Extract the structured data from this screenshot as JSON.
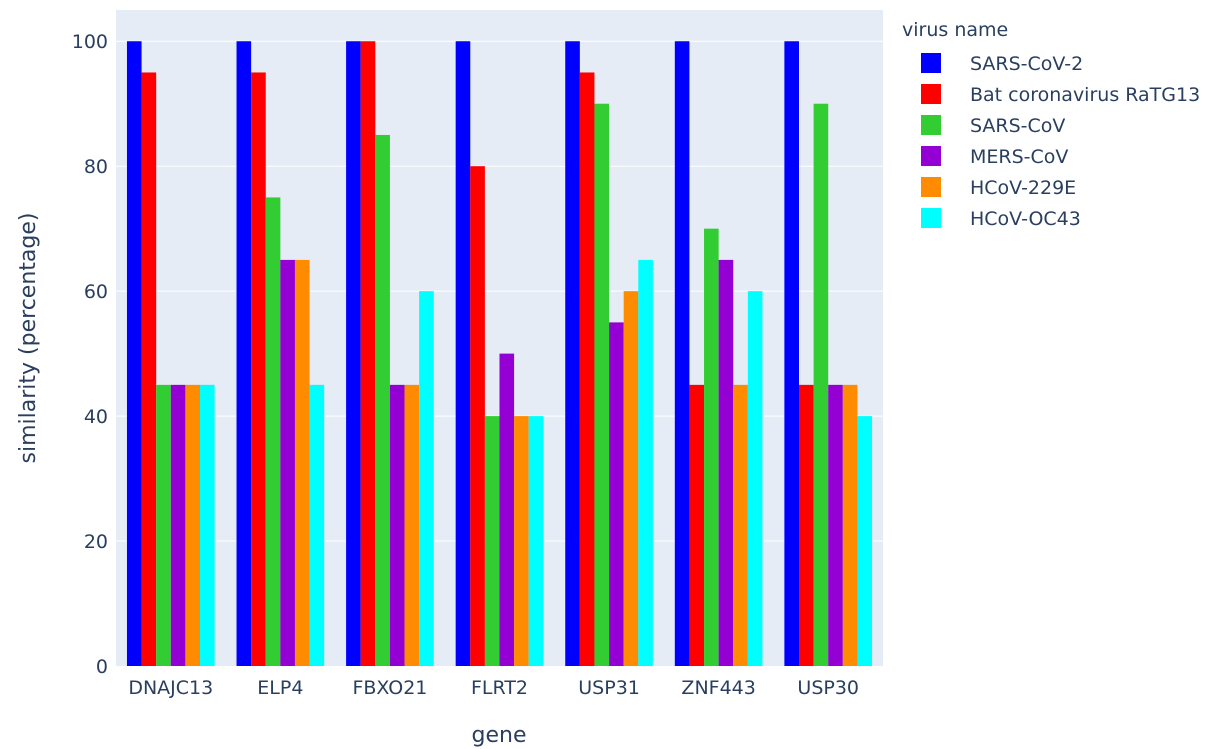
{
  "chart_data": {
    "type": "bar",
    "xlabel": "gene",
    "ylabel": "similarity (percentage)",
    "ylim": [
      0,
      105
    ],
    "yticks": [
      0,
      20,
      40,
      60,
      80,
      100
    ],
    "grid": true,
    "plot_background": "#e5ecf6",
    "legend_title": "virus name",
    "legend_position": "right",
    "categories": [
      "DNAJC13",
      "ELP4",
      "FBXO21",
      "FLRT2",
      "USP31",
      "ZNF443",
      "USP30"
    ],
    "series": [
      {
        "name": "SARS-CoV-2",
        "color": "#0000ff",
        "values": [
          100,
          100,
          100,
          100,
          100,
          100,
          100
        ]
      },
      {
        "name": "Bat coronavirus RaTG13",
        "color": "#ff0000",
        "values": [
          95,
          95,
          100,
          80,
          95,
          45,
          45
        ]
      },
      {
        "name": "SARS-CoV",
        "color": "#32cd32",
        "values": [
          45,
          75,
          85,
          40,
          90,
          70,
          90
        ]
      },
      {
        "name": "MERS-CoV",
        "color": "#9400d3",
        "values": [
          45,
          65,
          45,
          50,
          55,
          65,
          45
        ]
      },
      {
        "name": "HCoV-229E",
        "color": "#ff8c00",
        "values": [
          45,
          65,
          45,
          40,
          60,
          45,
          45
        ]
      },
      {
        "name": "HCoV-OC43",
        "color": "#00ffff",
        "values": [
          45,
          45,
          60,
          40,
          65,
          60,
          40
        ]
      }
    ]
  }
}
